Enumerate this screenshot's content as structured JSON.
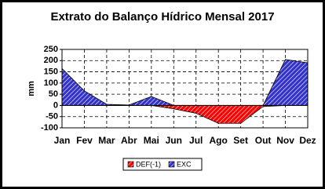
{
  "chart_data": {
    "type": "area",
    "title": "Extrato do Balanço Hídrico Mensal 2017",
    "y_label": "mm",
    "categories": [
      "Jan",
      "Fev",
      "Mar",
      "Abr",
      "Mai",
      "Jun",
      "Jul",
      "Ago",
      "Set",
      "Out",
      "Nov",
      "Dez"
    ],
    "series": [
      {
        "name": "DEF(-1)",
        "color": "#ff0000",
        "values": [
          0,
          0,
          0,
          0,
          0,
          -15,
          -35,
          -80,
          -80,
          -5,
          0,
          0
        ]
      },
      {
        "name": "EXC",
        "color": "#3333cc",
        "values": [
          165,
          65,
          5,
          2,
          40,
          0,
          0,
          0,
          0,
          0,
          205,
          190
        ]
      }
    ],
    "ylim": [
      -100,
      250
    ],
    "yticks": [
      -100,
      -50,
      0,
      50,
      100,
      150,
      200,
      250
    ],
    "grid": true,
    "legend": "bottom"
  }
}
